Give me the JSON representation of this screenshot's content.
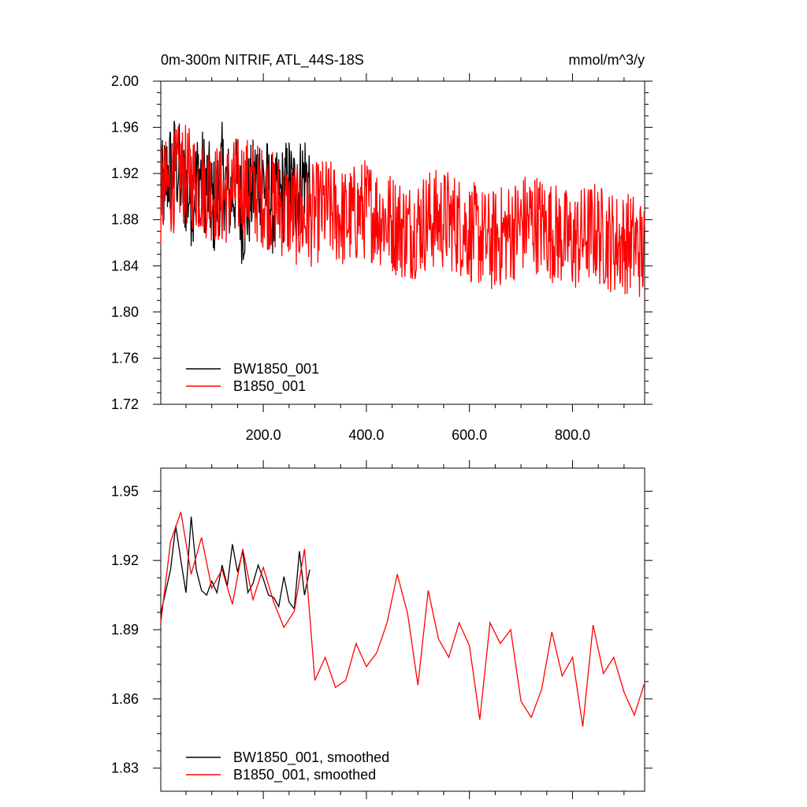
{
  "chart_data": [
    {
      "type": "line",
      "title": "0m-300m NITRIF, ATL_44S-18S",
      "units": "mmol/m^3/y",
      "xlim": [
        1,
        940
      ],
      "ylim": [
        1.72,
        2.0
      ],
      "x_ticks": [
        200,
        400,
        600,
        800
      ],
      "x_tick_labels": [
        "200.0",
        "400.0",
        "600.0",
        "800.0"
      ],
      "y_ticks": [
        1.72,
        1.76,
        1.8,
        1.84,
        1.88,
        1.92,
        1.96,
        2.0
      ],
      "y_tick_labels": [
        "1.72",
        "1.76",
        "1.80",
        "1.84",
        "1.88",
        "1.92",
        "1.96",
        "2.00"
      ],
      "legend_position": "bottom-left",
      "series": [
        {
          "name": "BW1850_001",
          "color": "#000000",
          "x": [
            1,
            15,
            30,
            45,
            60,
            75,
            90,
            105,
            120,
            135,
            150,
            160,
            175,
            190,
            205,
            220,
            235,
            250,
            265,
            280,
            290
          ],
          "y": [
            1.9,
            1.92,
            1.93,
            1.91,
            1.9,
            1.92,
            1.91,
            1.89,
            1.92,
            1.9,
            1.91,
            1.88,
            1.9,
            1.92,
            1.91,
            1.89,
            1.9,
            1.91,
            1.9,
            1.92,
            1.91
          ]
        },
        {
          "name": "B1850_001",
          "color": "#ff0000",
          "x": [
            1,
            40,
            80,
            120,
            160,
            200,
            240,
            280,
            320,
            360,
            400,
            440,
            480,
            520,
            560,
            600,
            640,
            680,
            720,
            760,
            800,
            840,
            880,
            920,
            940
          ],
          "y": [
            1.9,
            1.92,
            1.91,
            1.9,
            1.91,
            1.9,
            1.89,
            1.88,
            1.89,
            1.88,
            1.89,
            1.88,
            1.87,
            1.88,
            1.88,
            1.87,
            1.86,
            1.87,
            1.88,
            1.87,
            1.86,
            1.87,
            1.86,
            1.86,
            1.85
          ]
        }
      ]
    },
    {
      "type": "line",
      "xlim": [
        1,
        940
      ],
      "ylim": [
        1.82,
        1.96
      ],
      "y_ticks": [
        1.83,
        1.86,
        1.89,
        1.92,
        1.95
      ],
      "y_tick_labels": [
        "1.83",
        "1.86",
        "1.89",
        "1.92",
        "1.95"
      ],
      "legend_position": "bottom-left",
      "series": [
        {
          "name": "BW1850_001, smoothed",
          "color": "#000000",
          "x": [
            1,
            10,
            20,
            30,
            40,
            50,
            60,
            70,
            80,
            90,
            100,
            110,
            120,
            130,
            140,
            150,
            160,
            170,
            180,
            190,
            200,
            210,
            220,
            230,
            240,
            250,
            260,
            270,
            280,
            290
          ],
          "y": [
            1.897,
            1.906,
            1.916,
            1.935,
            1.92,
            1.906,
            1.939,
            1.916,
            1.907,
            1.905,
            1.911,
            1.906,
            1.918,
            1.909,
            1.927,
            1.915,
            1.924,
            1.906,
            1.91,
            1.918,
            1.912,
            1.905,
            1.904,
            1.9,
            1.913,
            1.902,
            1.899,
            1.924,
            1.905,
            1.916
          ]
        },
        {
          "name": "B1850_001, smoothed",
          "color": "#ff0000",
          "x": [
            1,
            20,
            40,
            60,
            80,
            100,
            120,
            140,
            160,
            180,
            200,
            220,
            240,
            260,
            280,
            300,
            320,
            340,
            360,
            380,
            400,
            420,
            440,
            460,
            480,
            500,
            520,
            540,
            560,
            580,
            600,
            620,
            640,
            660,
            680,
            700,
            720,
            740,
            760,
            780,
            800,
            820,
            840,
            860,
            880,
            900,
            920,
            940
          ],
          "y": [
            1.893,
            1.928,
            1.941,
            1.914,
            1.93,
            1.908,
            1.916,
            1.901,
            1.925,
            1.903,
            1.917,
            1.902,
            1.891,
            1.898,
            1.925,
            1.868,
            1.878,
            1.865,
            1.868,
            1.884,
            1.874,
            1.88,
            1.893,
            1.914,
            1.897,
            1.866,
            1.907,
            1.886,
            1.878,
            1.893,
            1.883,
            1.851,
            1.893,
            1.884,
            1.89,
            1.859,
            1.852,
            1.864,
            1.889,
            1.87,
            1.878,
            1.848,
            1.892,
            1.871,
            1.878,
            1.863,
            1.853,
            1.867
          ]
        }
      ]
    }
  ]
}
